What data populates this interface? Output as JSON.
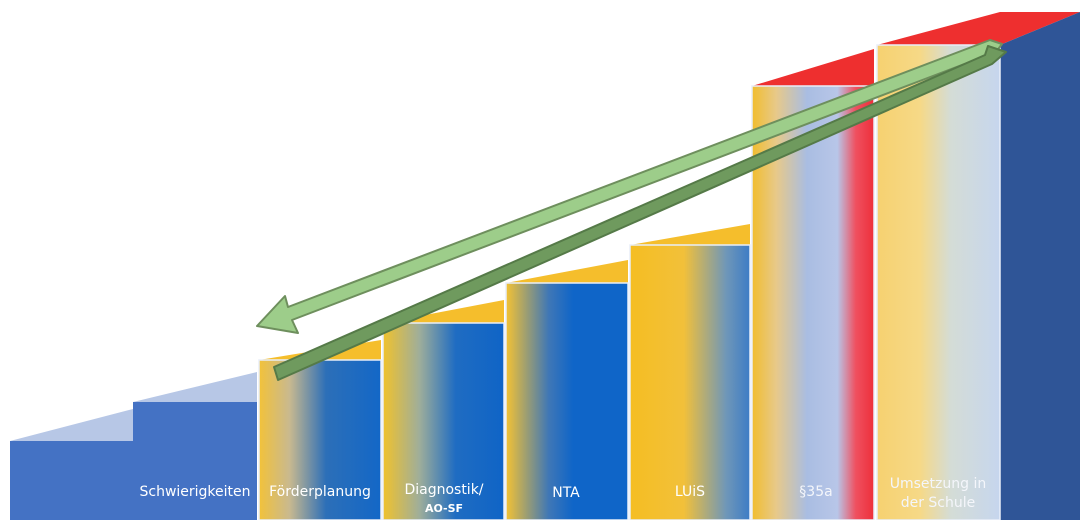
{
  "diagram": {
    "steps": [
      {
        "id": "base",
        "label": ""
      },
      {
        "id": "schwierigkeiten",
        "label": "Schwierigkeiten"
      },
      {
        "id": "foerderplanung",
        "label": "Förderplanung"
      },
      {
        "id": "diagnostik",
        "label": "Diagnostik/",
        "label_line2": "AO-SF"
      },
      {
        "id": "nta",
        "label": "NTA"
      },
      {
        "id": "luis",
        "label": "LUiS"
      },
      {
        "id": "paragraph35a",
        "label": "§35a"
      },
      {
        "id": "umsetzung",
        "label": "Umsetzung in",
        "label_line2": "der Schule"
      }
    ],
    "arrows": [
      {
        "id": "arrow-back",
        "direction": "left",
        "color": "#9dcd8a"
      },
      {
        "id": "arrow-forward",
        "direction": "right",
        "color": "#6f9a5e"
      }
    ],
    "colors": {
      "blue": "#1565c0",
      "dark_blue": "#2f5597",
      "light_blue": "#4472c4",
      "gold": "#f5be2c",
      "red": "#ee2f2f",
      "arrow_light": "#9dcd8a",
      "arrow_dark": "#6f9a5e"
    }
  }
}
